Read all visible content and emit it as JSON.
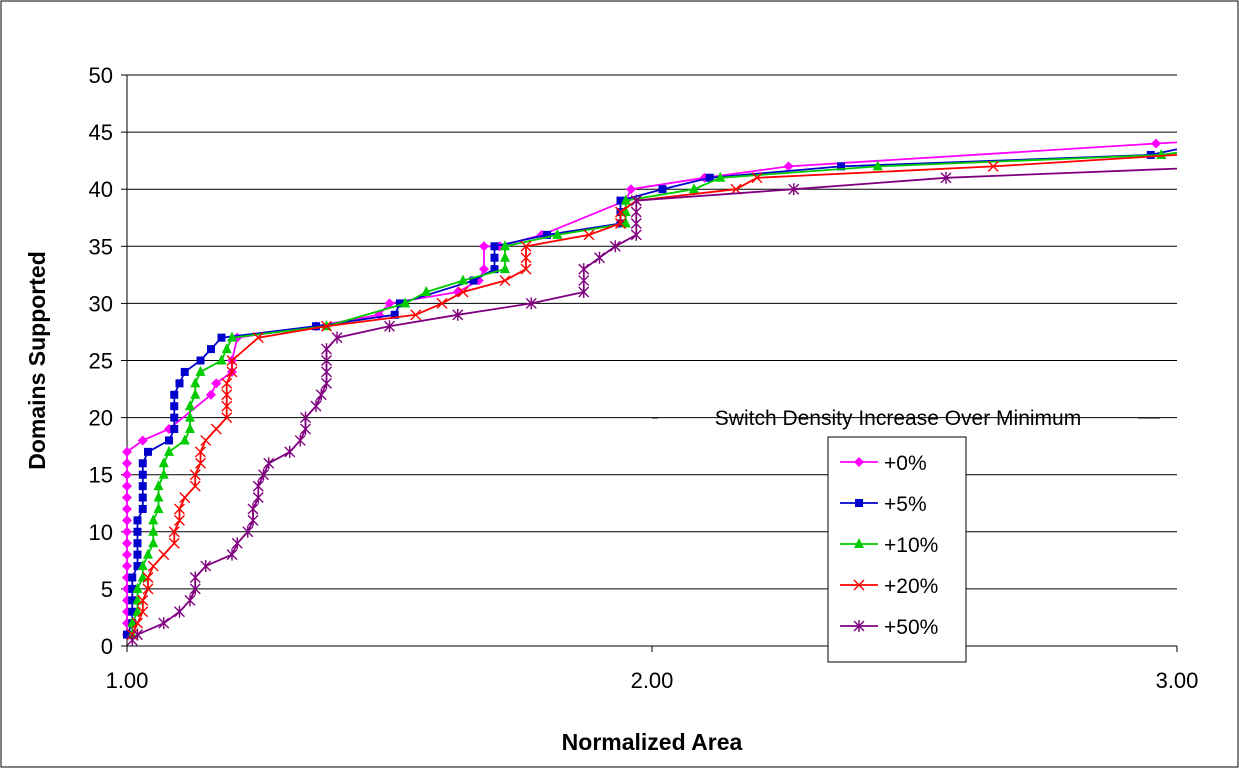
{
  "chart_data": {
    "type": "line",
    "title": "",
    "xlabel": "Normalized Area",
    "ylabel": "Domains Supported",
    "xlim": [
      1.0,
      3.0
    ],
    "ylim": [
      0,
      50
    ],
    "x_ticks": [
      "1.00",
      "2.00",
      "3.00"
    ],
    "y_ticks": [
      "0",
      "5",
      "10",
      "15",
      "20",
      "25",
      "30",
      "35",
      "40",
      "45",
      "50"
    ],
    "grid": "horizontal",
    "legend": {
      "title": "Switch Density Increase Over Minimum",
      "placement": "right"
    },
    "series": [
      {
        "name": "+0%",
        "color": "#ff00ff",
        "marker": "diamond",
        "points": [
          [
            1.0,
            1
          ],
          [
            1.0,
            2
          ],
          [
            1.0,
            3
          ],
          [
            1.0,
            4
          ],
          [
            1.0,
            5
          ],
          [
            1.0,
            6
          ],
          [
            1.0,
            7
          ],
          [
            1.0,
            8
          ],
          [
            1.0,
            9
          ],
          [
            1.0,
            10
          ],
          [
            1.0,
            11
          ],
          [
            1.0,
            12
          ],
          [
            1.0,
            13
          ],
          [
            1.0,
            14
          ],
          [
            1.0,
            15
          ],
          [
            1.0,
            16
          ],
          [
            1.0,
            17
          ],
          [
            1.03,
            18
          ],
          [
            1.08,
            19
          ],
          [
            1.16,
            22
          ],
          [
            1.17,
            23
          ],
          [
            1.2,
            24
          ],
          [
            1.2,
            25
          ],
          [
            1.21,
            27
          ],
          [
            1.36,
            28
          ],
          [
            1.48,
            29
          ],
          [
            1.5,
            30
          ],
          [
            1.63,
            31
          ],
          [
            1.67,
            32
          ],
          [
            1.68,
            33
          ],
          [
            1.68,
            35
          ],
          [
            1.71,
            35
          ],
          [
            1.79,
            36
          ],
          [
            1.95,
            39
          ],
          [
            1.96,
            40
          ],
          [
            2.1,
            41
          ],
          [
            2.26,
            42
          ],
          [
            2.96,
            44
          ],
          [
            3.0,
            44.1
          ]
        ]
      },
      {
        "name": "+5%",
        "color": "#0000cc",
        "marker": "square",
        "points": [
          [
            1.0,
            1
          ],
          [
            1.01,
            2
          ],
          [
            1.01,
            3
          ],
          [
            1.01,
            4
          ],
          [
            1.01,
            5
          ],
          [
            1.01,
            6
          ],
          [
            1.02,
            7
          ],
          [
            1.02,
            8
          ],
          [
            1.02,
            9
          ],
          [
            1.02,
            10
          ],
          [
            1.02,
            11
          ],
          [
            1.03,
            12
          ],
          [
            1.03,
            13
          ],
          [
            1.03,
            14
          ],
          [
            1.03,
            15
          ],
          [
            1.03,
            16
          ],
          [
            1.04,
            17
          ],
          [
            1.08,
            18
          ],
          [
            1.09,
            19
          ],
          [
            1.09,
            20
          ],
          [
            1.09,
            21
          ],
          [
            1.09,
            22
          ],
          [
            1.1,
            23
          ],
          [
            1.11,
            24
          ],
          [
            1.14,
            25
          ],
          [
            1.16,
            26
          ],
          [
            1.18,
            27
          ],
          [
            1.36,
            28
          ],
          [
            1.51,
            29
          ],
          [
            1.52,
            30
          ],
          [
            1.66,
            32
          ],
          [
            1.7,
            33
          ],
          [
            1.7,
            34
          ],
          [
            1.7,
            35
          ],
          [
            1.8,
            36
          ],
          [
            1.94,
            37
          ],
          [
            1.94,
            38
          ],
          [
            1.94,
            39
          ],
          [
            2.02,
            40
          ],
          [
            2.11,
            41
          ],
          [
            2.36,
            42
          ],
          [
            2.95,
            43
          ],
          [
            3.0,
            43.5
          ]
        ]
      },
      {
        "name": "+10%",
        "color": "#00cc00",
        "marker": "triangle",
        "points": [
          [
            1.01,
            1
          ],
          [
            1.01,
            2
          ],
          [
            1.02,
            3
          ],
          [
            1.02,
            4
          ],
          [
            1.02,
            5
          ],
          [
            1.03,
            6
          ],
          [
            1.03,
            7
          ],
          [
            1.04,
            8
          ],
          [
            1.05,
            9
          ],
          [
            1.05,
            10
          ],
          [
            1.05,
            11
          ],
          [
            1.06,
            12
          ],
          [
            1.06,
            13
          ],
          [
            1.06,
            14
          ],
          [
            1.07,
            15
          ],
          [
            1.07,
            16
          ],
          [
            1.08,
            17
          ],
          [
            1.11,
            18
          ],
          [
            1.12,
            19
          ],
          [
            1.12,
            20
          ],
          [
            1.12,
            21
          ],
          [
            1.13,
            22
          ],
          [
            1.13,
            23
          ],
          [
            1.14,
            24
          ],
          [
            1.18,
            25
          ],
          [
            1.19,
            26
          ],
          [
            1.2,
            27
          ],
          [
            1.38,
            28
          ],
          [
            1.53,
            30
          ],
          [
            1.57,
            31
          ],
          [
            1.64,
            32
          ],
          [
            1.72,
            33
          ],
          [
            1.72,
            34
          ],
          [
            1.72,
            35
          ],
          [
            1.82,
            36
          ],
          [
            1.95,
            37
          ],
          [
            1.95,
            38
          ],
          [
            1.95,
            39
          ],
          [
            2.08,
            40
          ],
          [
            2.13,
            41
          ],
          [
            2.43,
            42
          ],
          [
            2.97,
            43
          ],
          [
            3.0,
            43.2
          ]
        ]
      },
      {
        "name": "+20%",
        "color": "#ff0000",
        "marker": "x",
        "points": [
          [
            1.01,
            1
          ],
          [
            1.02,
            2
          ],
          [
            1.03,
            3
          ],
          [
            1.03,
            4
          ],
          [
            1.04,
            5
          ],
          [
            1.04,
            6
          ],
          [
            1.05,
            7
          ],
          [
            1.07,
            8
          ],
          [
            1.09,
            9
          ],
          [
            1.09,
            10
          ],
          [
            1.1,
            11
          ],
          [
            1.1,
            12
          ],
          [
            1.11,
            13
          ],
          [
            1.13,
            14
          ],
          [
            1.13,
            15
          ],
          [
            1.14,
            16
          ],
          [
            1.14,
            17
          ],
          [
            1.15,
            18
          ],
          [
            1.17,
            19
          ],
          [
            1.19,
            20
          ],
          [
            1.19,
            21
          ],
          [
            1.19,
            22
          ],
          [
            1.19,
            23
          ],
          [
            1.2,
            24
          ],
          [
            1.2,
            25
          ],
          [
            1.25,
            27
          ],
          [
            1.38,
            28
          ],
          [
            1.55,
            29
          ],
          [
            1.6,
            30
          ],
          [
            1.64,
            31
          ],
          [
            1.72,
            32
          ],
          [
            1.76,
            33
          ],
          [
            1.76,
            34
          ],
          [
            1.76,
            35
          ],
          [
            1.88,
            36
          ],
          [
            1.94,
            37
          ],
          [
            1.94,
            38
          ],
          [
            1.97,
            39
          ],
          [
            2.16,
            40
          ],
          [
            2.2,
            41
          ],
          [
            2.65,
            42
          ],
          [
            3.0,
            43
          ]
        ]
      },
      {
        "name": "+50%",
        "color": "#800080",
        "marker": "star",
        "points": [
          [
            1.01,
            0.5
          ],
          [
            1.02,
            1
          ],
          [
            1.07,
            2
          ],
          [
            1.1,
            3
          ],
          [
            1.12,
            4
          ],
          [
            1.13,
            5
          ],
          [
            1.13,
            6
          ],
          [
            1.15,
            7
          ],
          [
            1.2,
            8
          ],
          [
            1.21,
            9
          ],
          [
            1.23,
            10
          ],
          [
            1.24,
            11
          ],
          [
            1.24,
            12
          ],
          [
            1.25,
            13
          ],
          [
            1.25,
            14
          ],
          [
            1.26,
            15
          ],
          [
            1.27,
            16
          ],
          [
            1.31,
            17
          ],
          [
            1.33,
            18
          ],
          [
            1.34,
            19
          ],
          [
            1.34,
            20
          ],
          [
            1.36,
            21
          ],
          [
            1.37,
            22
          ],
          [
            1.38,
            23
          ],
          [
            1.38,
            24
          ],
          [
            1.38,
            25
          ],
          [
            1.38,
            26
          ],
          [
            1.4,
            27
          ],
          [
            1.5,
            28
          ],
          [
            1.63,
            29
          ],
          [
            1.77,
            30
          ],
          [
            1.87,
            31
          ],
          [
            1.87,
            32
          ],
          [
            1.87,
            33
          ],
          [
            1.9,
            34
          ],
          [
            1.93,
            35
          ],
          [
            1.97,
            36
          ],
          [
            1.97,
            37
          ],
          [
            1.97,
            38
          ],
          [
            1.97,
            39
          ],
          [
            2.27,
            40
          ],
          [
            2.56,
            41
          ],
          [
            3.0,
            41.8
          ]
        ]
      }
    ]
  }
}
